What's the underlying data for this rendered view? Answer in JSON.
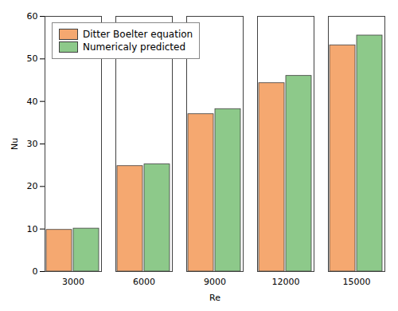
{
  "chart_data": {
    "type": "bar",
    "xlabel": "Re",
    "ylabel": "Nu",
    "categories": [
      "3000",
      "6000",
      "9000",
      "12000",
      "15000"
    ],
    "series": [
      {
        "name": "Ditter Boelter equation",
        "color": "#F5A870",
        "values": [
          9.8,
          24.8,
          37.0,
          44.3,
          53.2
        ]
      },
      {
        "name": "Numericaly predicted",
        "color": "#8DC98A",
        "values": [
          10.1,
          25.2,
          38.2,
          46.0,
          55.5
        ]
      }
    ],
    "ylim": [
      0,
      60
    ],
    "yticks": [
      0,
      10,
      20,
      30,
      40,
      50,
      60
    ],
    "grid": false,
    "legend": "upper left"
  }
}
